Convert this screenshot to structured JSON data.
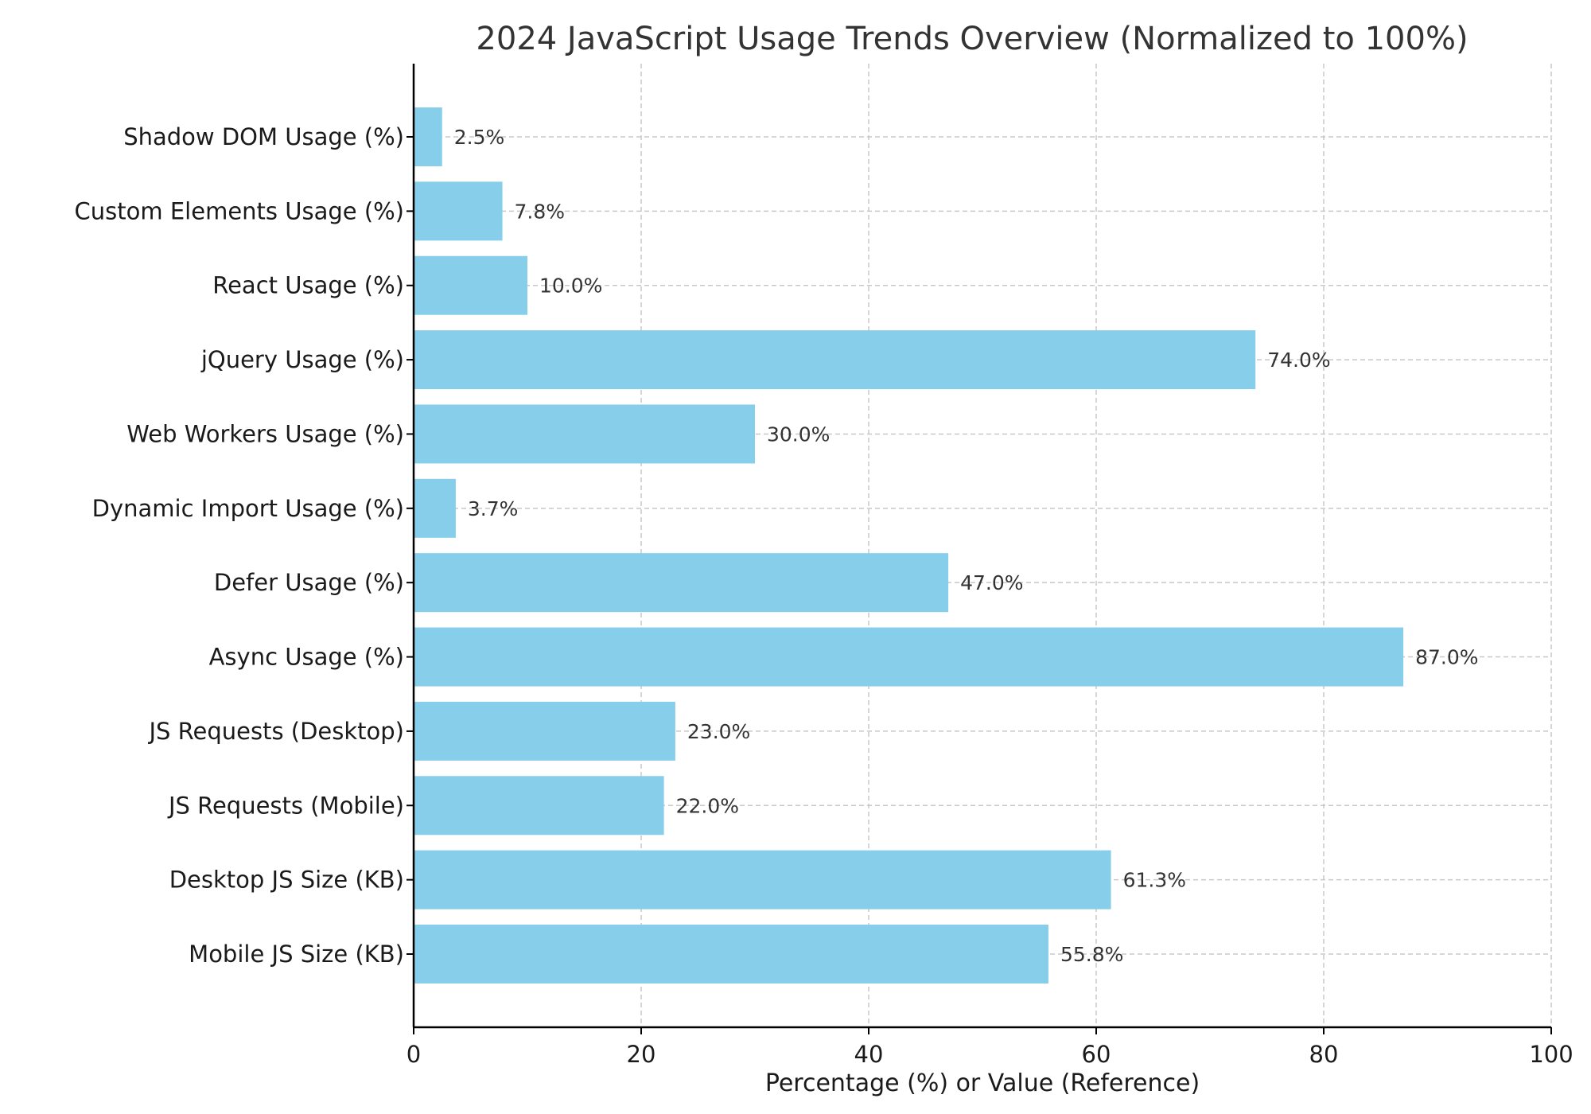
{
  "chart_data": {
    "type": "bar",
    "orientation": "horizontal",
    "title": "2024 JavaScript Usage Trends Overview (Normalized to 100%)",
    "xlabel": "Percentage (%) or Value (Reference)",
    "ylabel": "",
    "xlim": [
      0,
      100
    ],
    "x_ticks": [
      "0",
      "20",
      "40",
      "60",
      "80",
      "100"
    ],
    "grid": true,
    "bar_color": "#87CEEB",
    "categories": [
      "Mobile JS Size (KB)",
      "Desktop JS Size (KB)",
      "JS Requests (Mobile)",
      "JS Requests (Desktop)",
      "Async Usage (%)",
      "Defer Usage (%)",
      "Dynamic Import Usage (%)",
      "Web Workers Usage (%)",
      "jQuery Usage (%)",
      "React Usage (%)",
      "Custom Elements Usage (%)",
      "Shadow DOM Usage (%)"
    ],
    "values": [
      55.8,
      61.3,
      22.0,
      23.0,
      87.0,
      47.0,
      3.7,
      30.0,
      74.0,
      10.0,
      7.8,
      2.5
    ],
    "value_labels": [
      "55.8%",
      "61.3%",
      "22.0%",
      "23.0%",
      "87.0%",
      "47.0%",
      "3.7%",
      "30.0%",
      "74.0%",
      "10.0%",
      "7.8%",
      "2.5%"
    ]
  }
}
